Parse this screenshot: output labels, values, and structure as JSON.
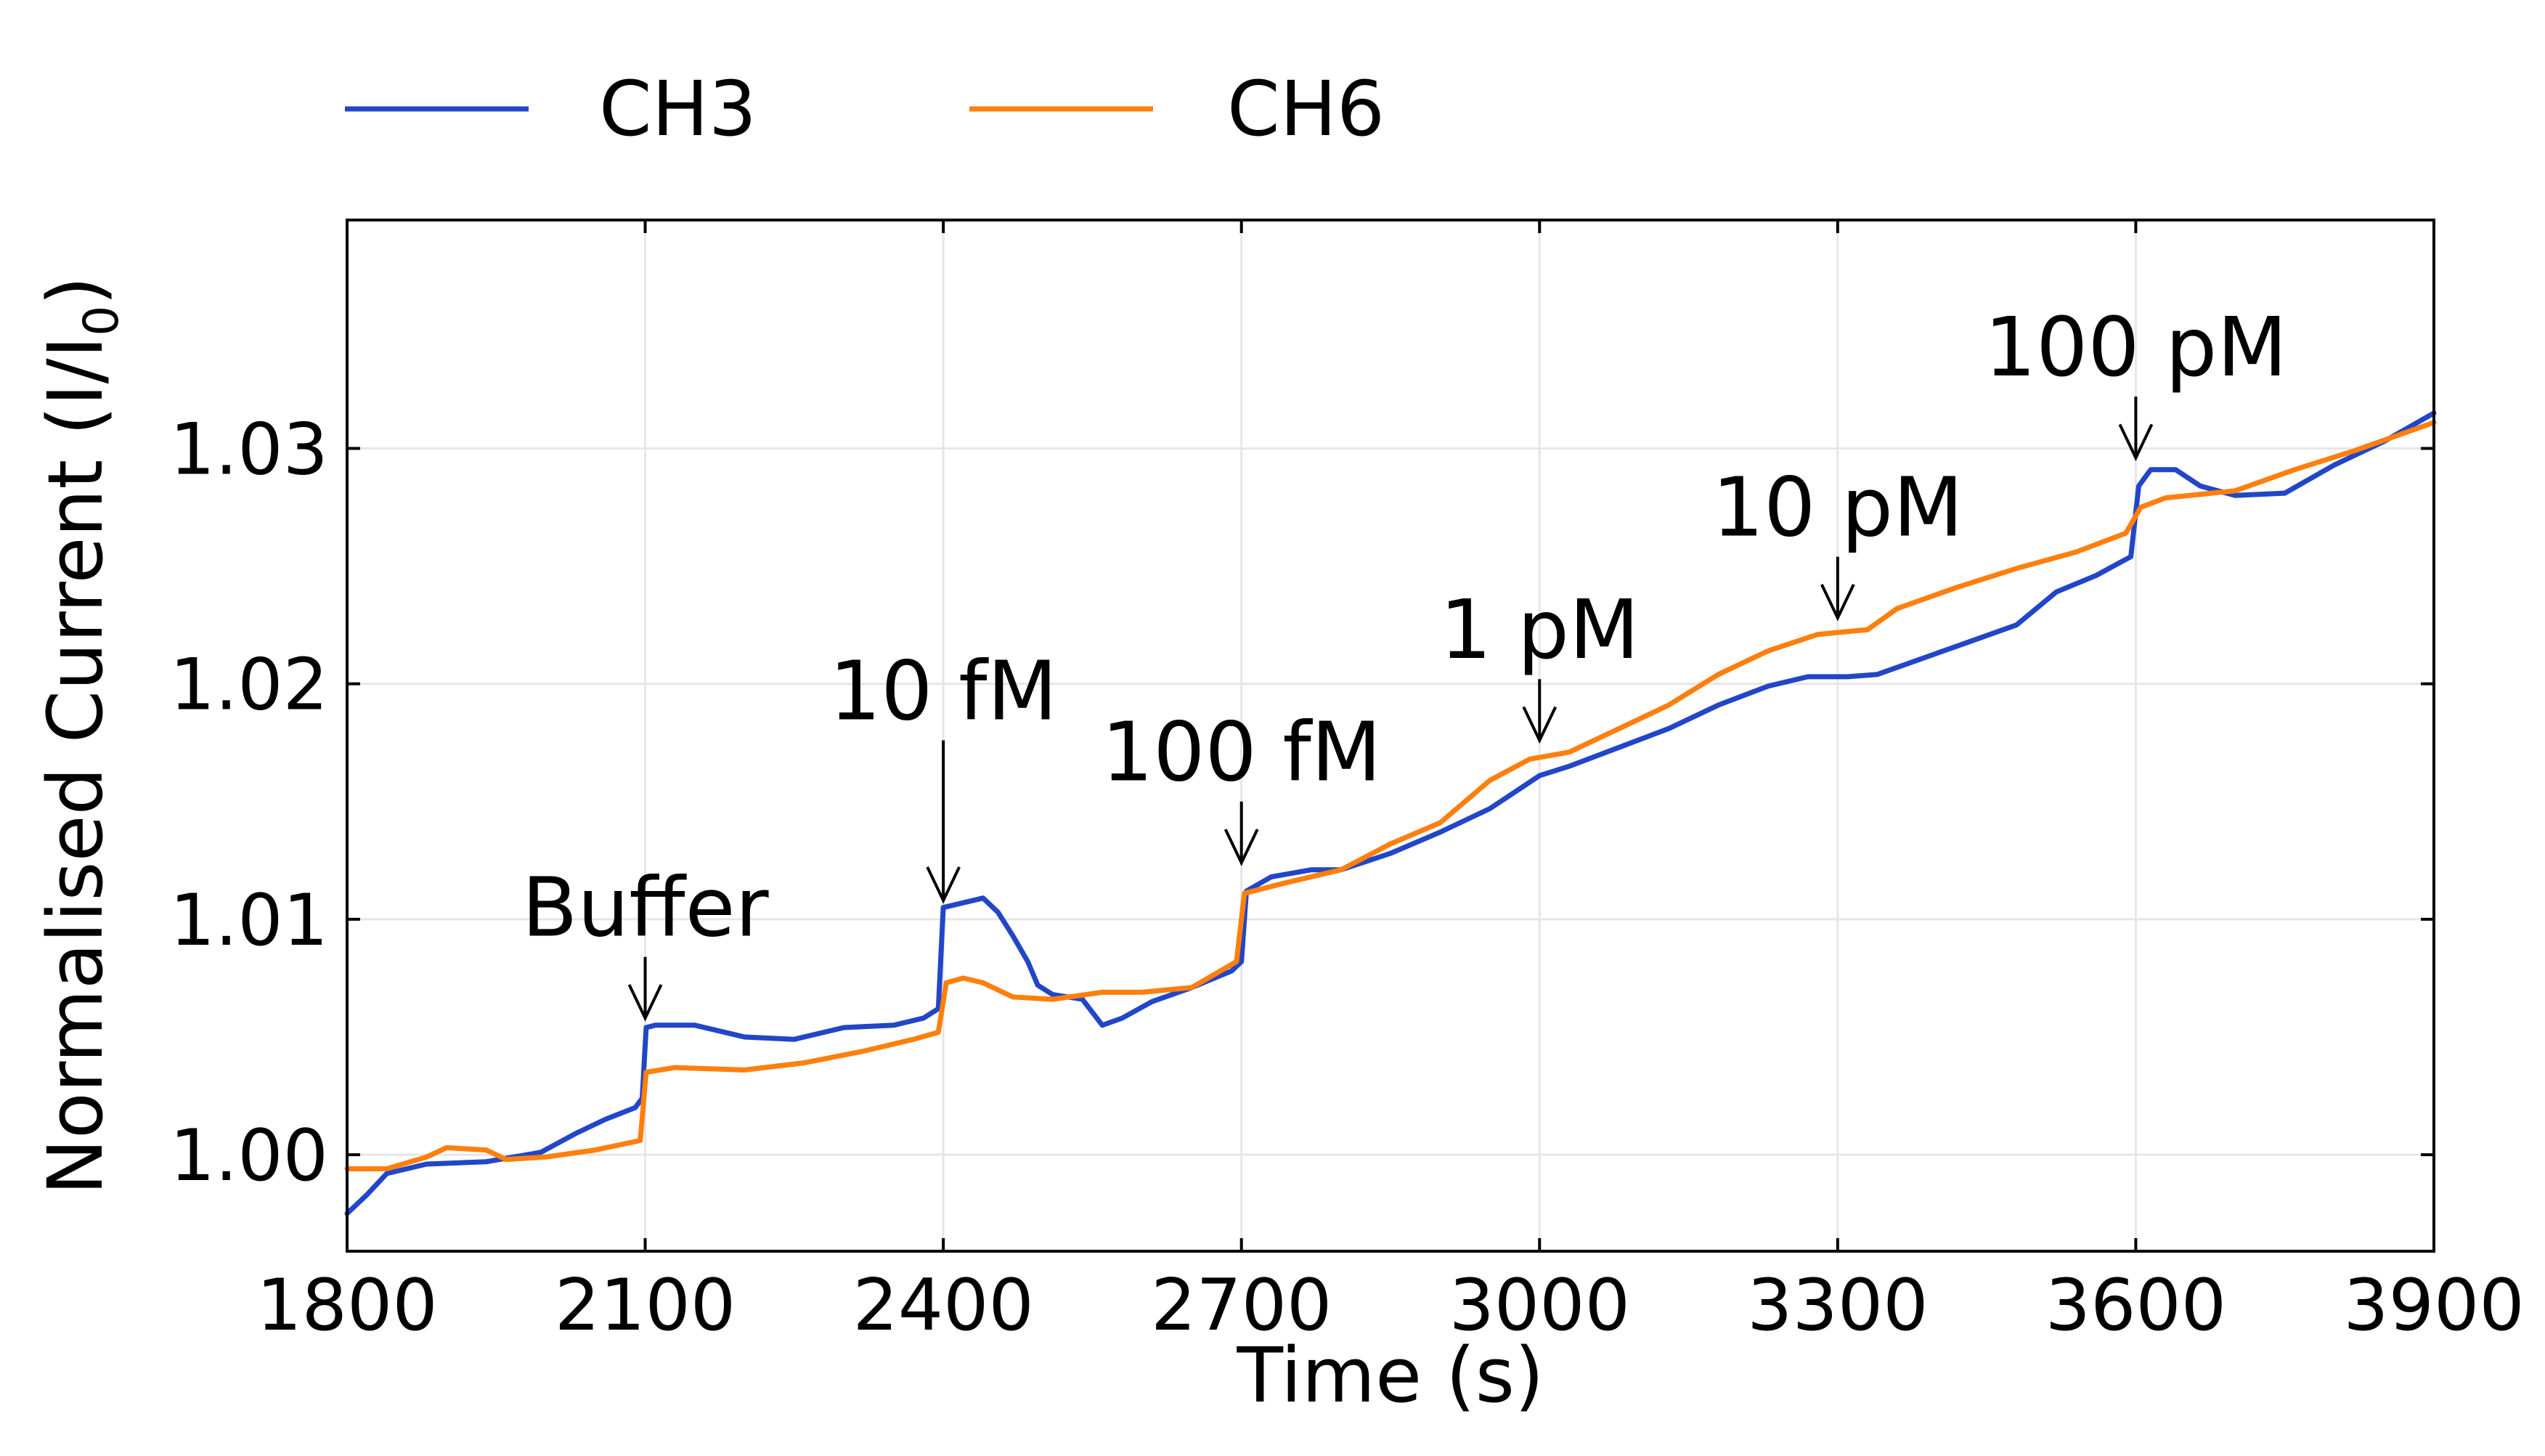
{
  "chart_data": {
    "type": "line",
    "xlabel": "Time (s)",
    "ylabel": "Normalised Current (I/I",
    "ylabel_sub": "0",
    "ylabel_close": ")",
    "xlim": [
      1800,
      3900
    ],
    "ylim": [
      0.9959,
      1.0397
    ],
    "x_ticks": [
      1800,
      2100,
      2400,
      2700,
      3000,
      3300,
      3600,
      3900
    ],
    "x_tick_labels": [
      "1800",
      "2100",
      "2400",
      "2700",
      "3000",
      "3300",
      "3600",
      "3900"
    ],
    "y_ticks": [
      1.0,
      1.01,
      1.02,
      1.03
    ],
    "y_tick_labels": [
      "1.00",
      "1.01",
      "1.02",
      "1.03"
    ],
    "grid": true,
    "legend_position": "top",
    "series": [
      {
        "name": "CH3",
        "color": "#2146c7",
        "points": [
          [
            1800,
            0.9975
          ],
          [
            1820,
            0.9983
          ],
          [
            1840,
            0.9992
          ],
          [
            1880,
            0.9996
          ],
          [
            1940,
            0.9997
          ],
          [
            1995,
            1.0001
          ],
          [
            2030,
            1.0009
          ],
          [
            2060,
            1.0015
          ],
          [
            2090,
            1.002
          ],
          [
            2097,
            1.0024
          ],
          [
            2101,
            1.0054
          ],
          [
            2110,
            1.0055
          ],
          [
            2150,
            1.0055
          ],
          [
            2200,
            1.005
          ],
          [
            2250,
            1.0049
          ],
          [
            2300,
            1.0054
          ],
          [
            2350,
            1.0055
          ],
          [
            2380,
            1.0058
          ],
          [
            2395,
            1.0062
          ],
          [
            2400,
            1.0105
          ],
          [
            2420,
            1.0107
          ],
          [
            2440,
            1.0109
          ],
          [
            2455,
            1.0103
          ],
          [
            2470,
            1.0093
          ],
          [
            2485,
            1.0082
          ],
          [
            2495,
            1.0072
          ],
          [
            2510,
            1.0068
          ],
          [
            2540,
            1.0066
          ],
          [
            2560,
            1.0055
          ],
          [
            2580,
            1.0058
          ],
          [
            2610,
            1.0065
          ],
          [
            2650,
            1.0071
          ],
          [
            2690,
            1.0078
          ],
          [
            2700,
            1.0082
          ],
          [
            2705,
            1.0112
          ],
          [
            2730,
            1.0118
          ],
          [
            2770,
            1.0121
          ],
          [
            2800,
            1.0121
          ],
          [
            2850,
            1.0128
          ],
          [
            2900,
            1.0137
          ],
          [
            2950,
            1.0147
          ],
          [
            3000,
            1.0161
          ],
          [
            3030,
            1.0165
          ],
          [
            3080,
            1.0173
          ],
          [
            3130,
            1.0181
          ],
          [
            3180,
            1.0191
          ],
          [
            3230,
            1.0199
          ],
          [
            3270,
            1.0203
          ],
          [
            3310,
            1.0203
          ],
          [
            3340,
            1.0204
          ],
          [
            3400,
            1.0213
          ],
          [
            3440,
            1.0219
          ],
          [
            3480,
            1.0225
          ],
          [
            3520,
            1.0239
          ],
          [
            3560,
            1.0246
          ],
          [
            3595,
            1.0254
          ],
          [
            3603,
            1.0284
          ],
          [
            3615,
            1.0291
          ],
          [
            3640,
            1.0291
          ],
          [
            3665,
            1.0284
          ],
          [
            3700,
            1.028
          ],
          [
            3750,
            1.0281
          ],
          [
            3800,
            1.0293
          ],
          [
            3850,
            1.0303
          ],
          [
            3900,
            1.0315
          ]
        ]
      },
      {
        "name": "CH6",
        "color": "#ff7f0e",
        "points": [
          [
            1800,
            0.9994
          ],
          [
            1840,
            0.9994
          ],
          [
            1880,
            0.9999
          ],
          [
            1900,
            1.0003
          ],
          [
            1940,
            1.0002
          ],
          [
            1960,
            0.9998
          ],
          [
            2000,
            0.9999
          ],
          [
            2050,
            1.0002
          ],
          [
            2095,
            1.0006
          ],
          [
            2101,
            1.0035
          ],
          [
            2130,
            1.0037
          ],
          [
            2200,
            1.0036
          ],
          [
            2260,
            1.0039
          ],
          [
            2320,
            1.0044
          ],
          [
            2370,
            1.0049
          ],
          [
            2395,
            1.0052
          ],
          [
            2403,
            1.0073
          ],
          [
            2420,
            1.0075
          ],
          [
            2440,
            1.0073
          ],
          [
            2470,
            1.0067
          ],
          [
            2510,
            1.0066
          ],
          [
            2560,
            1.0069
          ],
          [
            2600,
            1.0069
          ],
          [
            2650,
            1.0071
          ],
          [
            2695,
            1.0082
          ],
          [
            2703,
            1.0111
          ],
          [
            2740,
            1.0115
          ],
          [
            2800,
            1.0121
          ],
          [
            2850,
            1.0132
          ],
          [
            2900,
            1.0141
          ],
          [
            2950,
            1.0159
          ],
          [
            2990,
            1.0168
          ],
          [
            3030,
            1.0171
          ],
          [
            3080,
            1.0181
          ],
          [
            3130,
            1.0191
          ],
          [
            3180,
            1.0204
          ],
          [
            3230,
            1.0214
          ],
          [
            3280,
            1.0221
          ],
          [
            3330,
            1.0223
          ],
          [
            3360,
            1.0232
          ],
          [
            3420,
            1.0241
          ],
          [
            3480,
            1.0249
          ],
          [
            3540,
            1.0256
          ],
          [
            3590,
            1.0264
          ],
          [
            3605,
            1.0275
          ],
          [
            3630,
            1.0279
          ],
          [
            3700,
            1.0282
          ],
          [
            3760,
            1.0291
          ],
          [
            3820,
            1.0299
          ],
          [
            3900,
            1.0311
          ]
        ]
      }
    ],
    "annotations": [
      {
        "text": "Buffer",
        "x": 2100,
        "arrow_tip": 1.0058,
        "arrow_tail": 1.0084,
        "label_y": 1.0093
      },
      {
        "text": "10 fM",
        "x": 2400,
        "arrow_tip": 1.0108,
        "arrow_tail": 1.0176,
        "label_y": 1.0185
      },
      {
        "text": "100 fM",
        "x": 2700,
        "arrow_tip": 1.0124,
        "arrow_tail": 1.015,
        "label_y": 1.0159
      },
      {
        "text": "1 pM",
        "x": 3000,
        "arrow_tip": 1.0176,
        "arrow_tail": 1.0202,
        "label_y": 1.0211
      },
      {
        "text": "10 pM",
        "x": 3300,
        "arrow_tip": 1.0228,
        "arrow_tail": 1.0254,
        "label_y": 1.0263
      },
      {
        "text": "100 pM",
        "x": 3600,
        "arrow_tip": 1.0296,
        "arrow_tail": 1.0322,
        "label_y": 1.0331
      }
    ]
  }
}
